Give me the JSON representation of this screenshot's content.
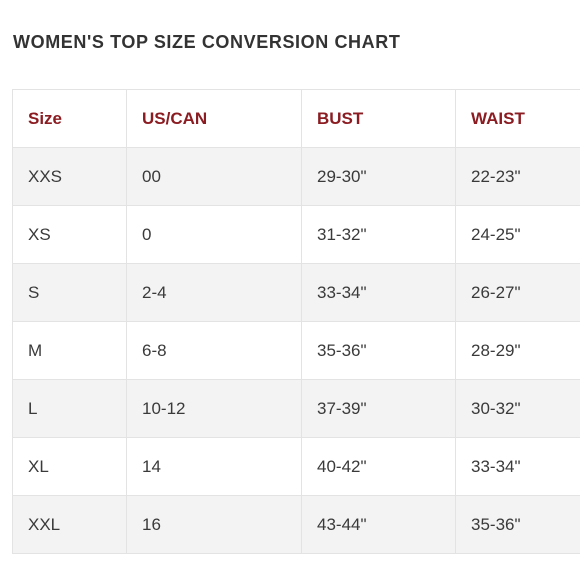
{
  "title": "WOMEN'S TOP SIZE CONVERSION CHART",
  "headers": [
    "Size",
    "US/CAN",
    "BUST",
    "WAIST"
  ],
  "rows": [
    [
      "XXS",
      "00",
      "29-30\"",
      "22-23\""
    ],
    [
      "XS",
      "0",
      "31-32\"",
      "24-25\""
    ],
    [
      "S",
      "2-4",
      "33-34\"",
      "26-27\""
    ],
    [
      "M",
      "6-8",
      "35-36\"",
      "28-29\""
    ],
    [
      "L",
      "10-12",
      "37-39\"",
      "30-32\""
    ],
    [
      "XL",
      "14",
      "40-42\"",
      "33-34\""
    ],
    [
      "XXL",
      "16",
      "43-44\"",
      "35-36\""
    ]
  ],
  "colors": {
    "header_text": "#8b1c22",
    "body_text": "#3a3a3a",
    "stripe": "#f3f3f3",
    "border": "#e3e3e3"
  }
}
